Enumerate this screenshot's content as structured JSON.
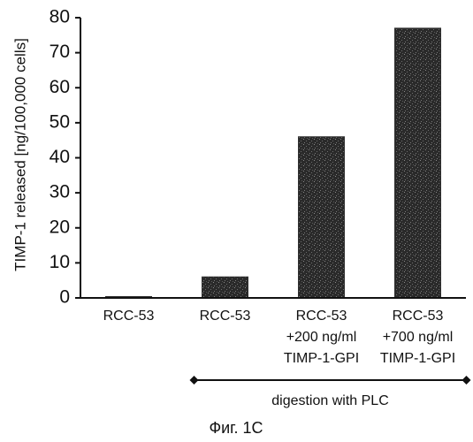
{
  "chart_data": {
    "type": "bar",
    "ylabel": "TIMP-1 released [ng/100,000 cells]",
    "xlabel": "",
    "ylim": [
      0,
      80
    ],
    "yticks": [
      0,
      10,
      20,
      30,
      40,
      50,
      60,
      70,
      80
    ],
    "grid": false,
    "categories": [
      [
        "RCC-53"
      ],
      [
        "RCC-53"
      ],
      [
        "RCC-53",
        "+200 ng/ml",
        "TIMP-1-GPI"
      ],
      [
        "RCC-53",
        "+700 ng/ml",
        "TIMP-1-GPI"
      ]
    ],
    "values": [
      0,
      6,
      46,
      77
    ],
    "bar_color": "#2e2e2e",
    "bracket": {
      "label": "digestion with PLC",
      "from_category": 1,
      "to_category": 3
    }
  },
  "caption": "Фиг. 1С"
}
